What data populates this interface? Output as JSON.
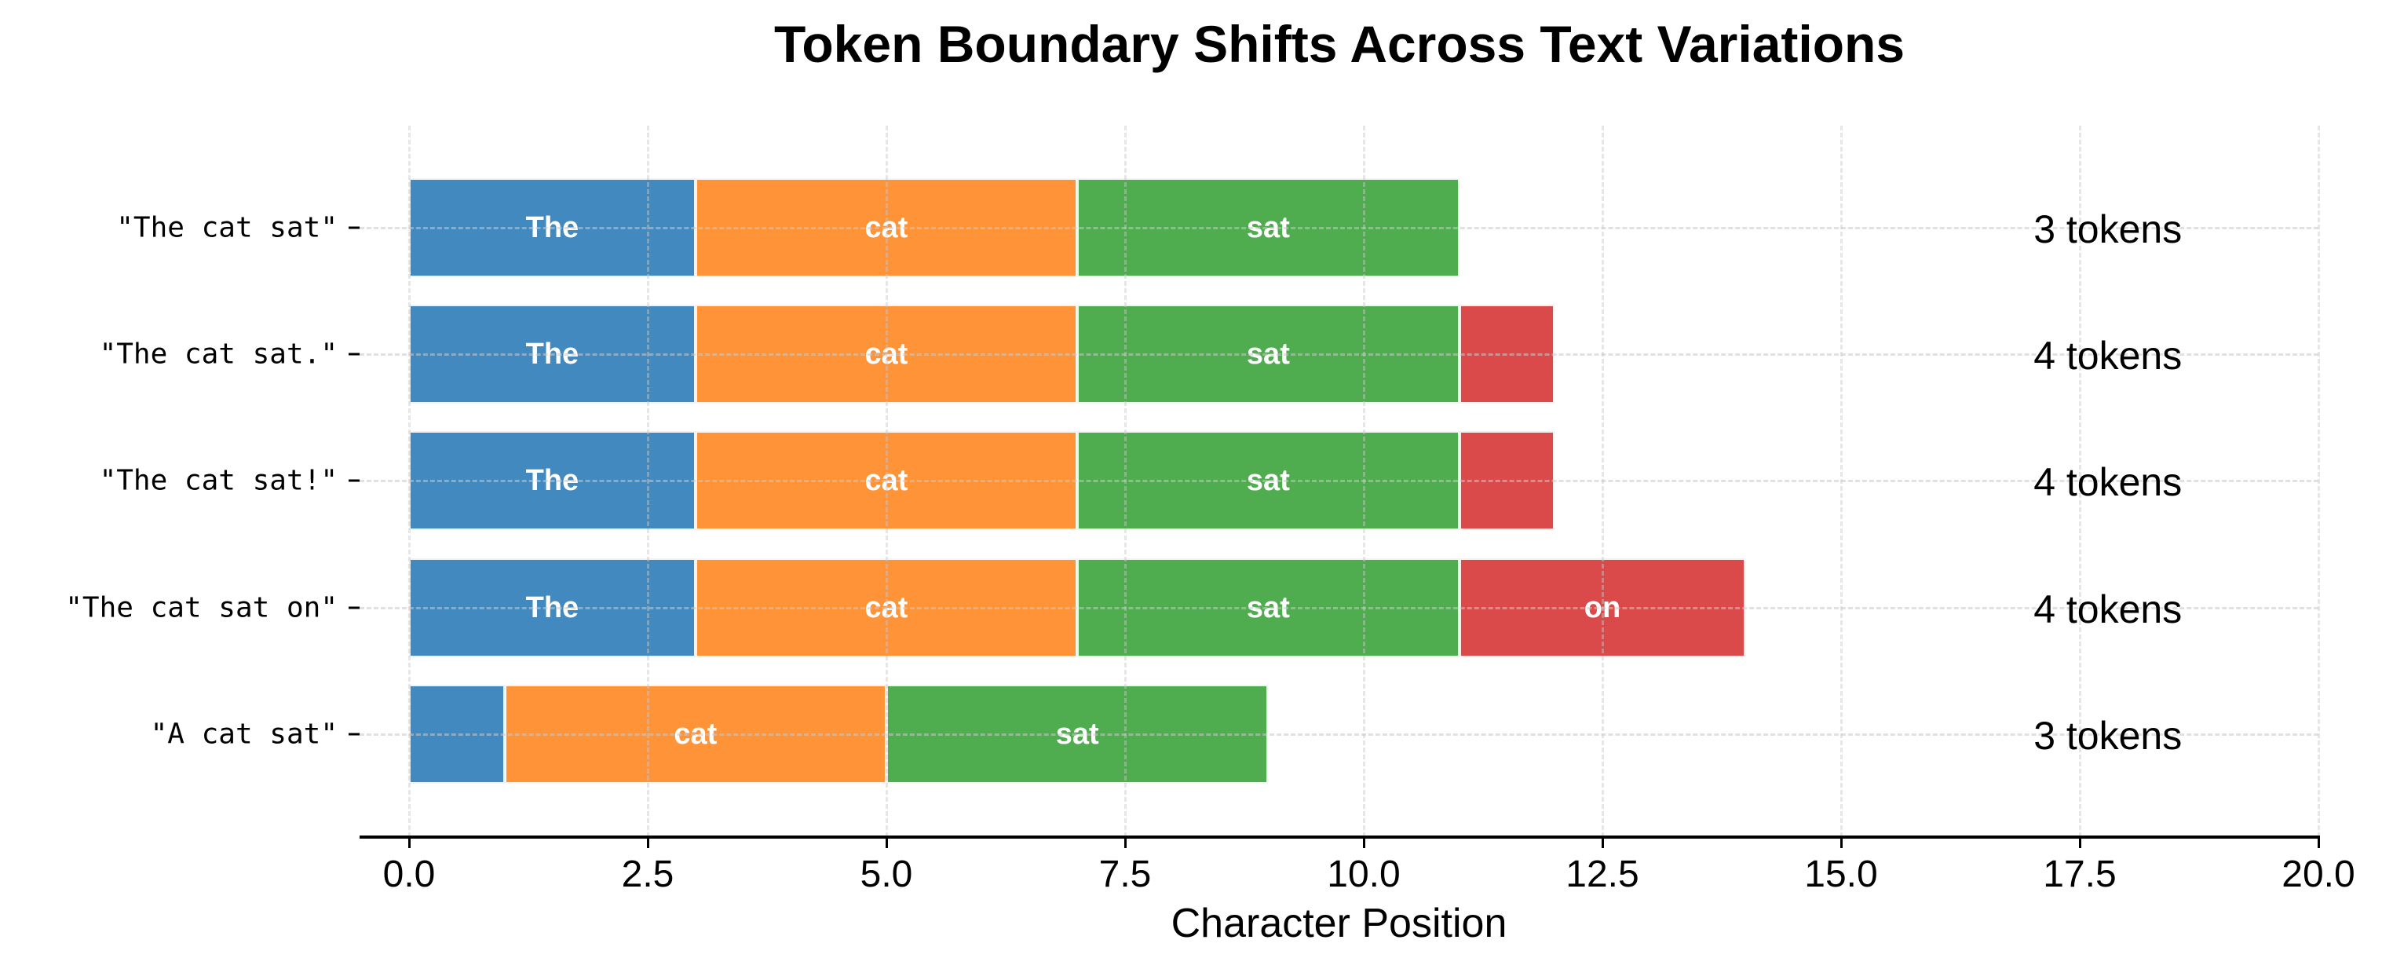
{
  "chart_data": {
    "type": "bar",
    "orientation": "horizontal-stacked",
    "title": "Token Boundary Shifts Across Text Variations",
    "xlabel": "Character Position",
    "ylabel": "",
    "xlim": [
      -0.5,
      20
    ],
    "xticks": [
      "0.0",
      "2.5",
      "5.0",
      "7.5",
      "10.0",
      "12.5",
      "15.0",
      "17.5",
      "20.0"
    ],
    "xtick_values": [
      0,
      2.5,
      5,
      7.5,
      10,
      12.5,
      15,
      17.5,
      20
    ],
    "grid": true,
    "legend": null,
    "colors": {
      "token1": "#4189be",
      "token2": "#ff9337",
      "token3": "#4fad50",
      "token4": "#db4a4b"
    },
    "categories": [
      "\"The cat sat\"",
      "\"The cat sat.\"",
      "\"The cat sat!\"",
      "\"The cat sat on\"",
      "\"A cat sat\""
    ],
    "rows": [
      {
        "label": "\"The cat sat\"",
        "token_count_label": "3 tokens",
        "segments": [
          {
            "start": 0,
            "end": 3,
            "label": "The",
            "color": "#4189be"
          },
          {
            "start": 3,
            "end": 7,
            "label": "cat",
            "color": "#ff9337"
          },
          {
            "start": 7,
            "end": 11,
            "label": "sat",
            "color": "#4fad50"
          }
        ]
      },
      {
        "label": "\"The cat sat.\"",
        "token_count_label": "4 tokens",
        "segments": [
          {
            "start": 0,
            "end": 3,
            "label": "The",
            "color": "#4189be"
          },
          {
            "start": 3,
            "end": 7,
            "label": "cat",
            "color": "#ff9337"
          },
          {
            "start": 7,
            "end": 11,
            "label": "sat",
            "color": "#4fad50"
          },
          {
            "start": 11,
            "end": 12,
            "label": "",
            "color": "#db4a4b"
          }
        ]
      },
      {
        "label": "\"The cat sat!\"",
        "token_count_label": "4 tokens",
        "segments": [
          {
            "start": 0,
            "end": 3,
            "label": "The",
            "color": "#4189be"
          },
          {
            "start": 3,
            "end": 7,
            "label": "cat",
            "color": "#ff9337"
          },
          {
            "start": 7,
            "end": 11,
            "label": "sat",
            "color": "#4fad50"
          },
          {
            "start": 11,
            "end": 12,
            "label": "",
            "color": "#db4a4b"
          }
        ]
      },
      {
        "label": "\"The cat sat on\"",
        "token_count_label": "4 tokens",
        "segments": [
          {
            "start": 0,
            "end": 3,
            "label": "The",
            "color": "#4189be"
          },
          {
            "start": 3,
            "end": 7,
            "label": "cat",
            "color": "#ff9337"
          },
          {
            "start": 7,
            "end": 11,
            "label": "sat",
            "color": "#4fad50"
          },
          {
            "start": 11,
            "end": 14,
            "label": "on",
            "color": "#db4a4b"
          }
        ]
      },
      {
        "label": "\"A cat sat\"",
        "token_count_label": "3 tokens",
        "segments": [
          {
            "start": 0,
            "end": 1,
            "label": "",
            "color": "#4189be"
          },
          {
            "start": 1,
            "end": 5,
            "label": "cat",
            "color": "#ff9337"
          },
          {
            "start": 5,
            "end": 9,
            "label": "sat",
            "color": "#4fad50"
          }
        ]
      }
    ],
    "annotations": [
      {
        "x": 17,
        "row": 0,
        "text": "3 tokens"
      },
      {
        "x": 17,
        "row": 1,
        "text": "4 tokens"
      },
      {
        "x": 17,
        "row": 2,
        "text": "4 tokens"
      },
      {
        "x": 17,
        "row": 3,
        "text": "4 tokens"
      },
      {
        "x": 17,
        "row": 4,
        "text": "3 tokens"
      }
    ]
  }
}
